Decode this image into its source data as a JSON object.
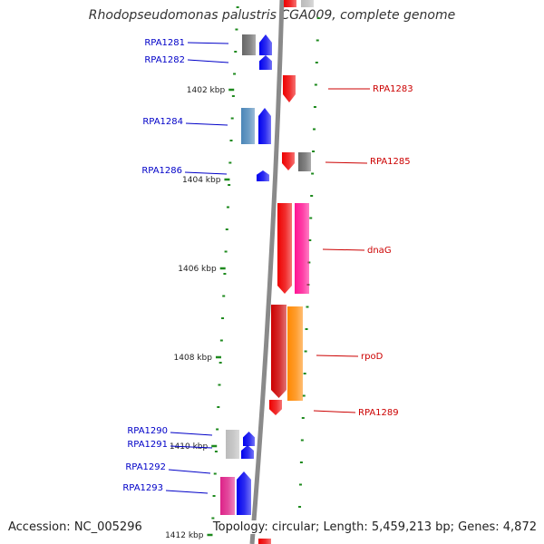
{
  "title": "Rhodopseudomonas palustris CGA009, complete genome",
  "accession": "Accession: NC_005296",
  "topology": "Topology: circular; Length: 5,459,213 bp; Genes: 4,872",
  "colors": {
    "backbone": "#8a8a8a",
    "tick": "#1e8a1e",
    "minus_label": "#0000c8",
    "plus_label": "#cc0000",
    "gray_gene": "#666666",
    "light_gray_gene": "#bbbbbb",
    "steel_blue_gene": "#4a86b8",
    "blue_gene": "#0000ee",
    "red_gene": "#ee0000",
    "dark_red_gene": "#cc0000",
    "pink_gene": "#ff1493",
    "magenta_gene": "#dd2288",
    "orange_gene": "#ff8800"
  },
  "scale": {
    "unit": "kbp",
    "labels": [
      "1402 kbp",
      "1404 kbp",
      "1406 kbp",
      "1408 kbp",
      "1410 kbp",
      "1412 kbp"
    ]
  },
  "genes": [
    {
      "label": "RPA1281",
      "strand": "minus"
    },
    {
      "label": "RPA1282",
      "strand": "minus"
    },
    {
      "label": "RPA1283",
      "strand": "plus"
    },
    {
      "label": "RPA1284",
      "strand": "minus"
    },
    {
      "label": "RPA1285",
      "strand": "plus"
    },
    {
      "label": "RPA1286",
      "strand": "minus"
    },
    {
      "label": "dnaG",
      "strand": "plus"
    },
    {
      "label": "rpoD",
      "strand": "plus"
    },
    {
      "label": "RPA1289",
      "strand": "plus"
    },
    {
      "label": "RPA1290",
      "strand": "minus"
    },
    {
      "label": "RPA1291",
      "strand": "minus"
    },
    {
      "label": "RPA1292",
      "strand": "minus"
    },
    {
      "label": "RPA1293",
      "strand": "minus"
    }
  ]
}
